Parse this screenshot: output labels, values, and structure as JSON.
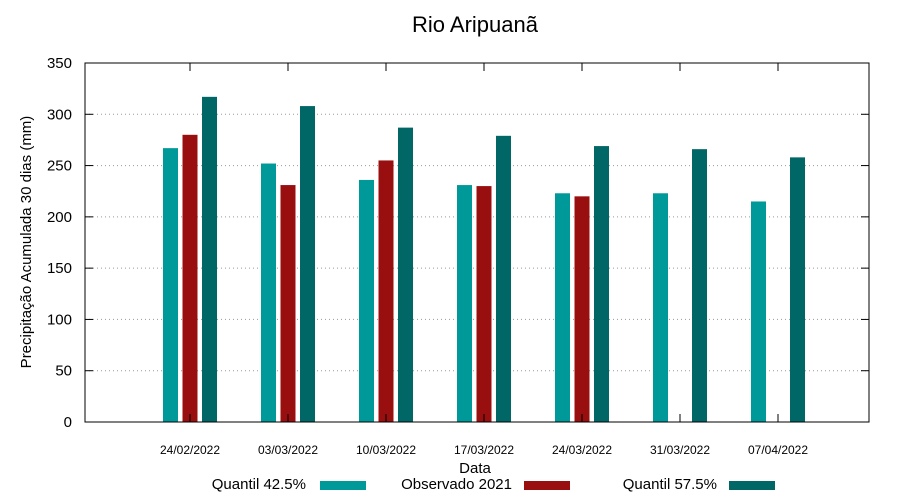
{
  "chart_data": {
    "type": "bar",
    "title": "Rio Aripuanã",
    "xlabel": "Data",
    "ylabel": "Precipitação Acumulada 30 dias (mm)",
    "ylim": [
      0,
      350
    ],
    "yticks": [
      0,
      50,
      100,
      150,
      200,
      250,
      300,
      350
    ],
    "grid": true,
    "legend_position": "bottom",
    "categories": [
      "24/02/2022",
      "03/03/2022",
      "10/03/2022",
      "17/03/2022",
      "24/03/2022",
      "31/03/2022",
      "07/04/2022"
    ],
    "series": [
      {
        "name": "Quantil 42.5%",
        "color": "#009999",
        "values": [
          267,
          252,
          236,
          231,
          223,
          223,
          215
        ]
      },
      {
        "name": "Observado 2021",
        "color": "#990f0f",
        "values": [
          280,
          231,
          255,
          230,
          220,
          null,
          null
        ]
      },
      {
        "name": "Quantil 57.5%",
        "color": "#006666",
        "values": [
          317,
          308,
          287,
          279,
          269,
          266,
          258
        ]
      }
    ]
  }
}
